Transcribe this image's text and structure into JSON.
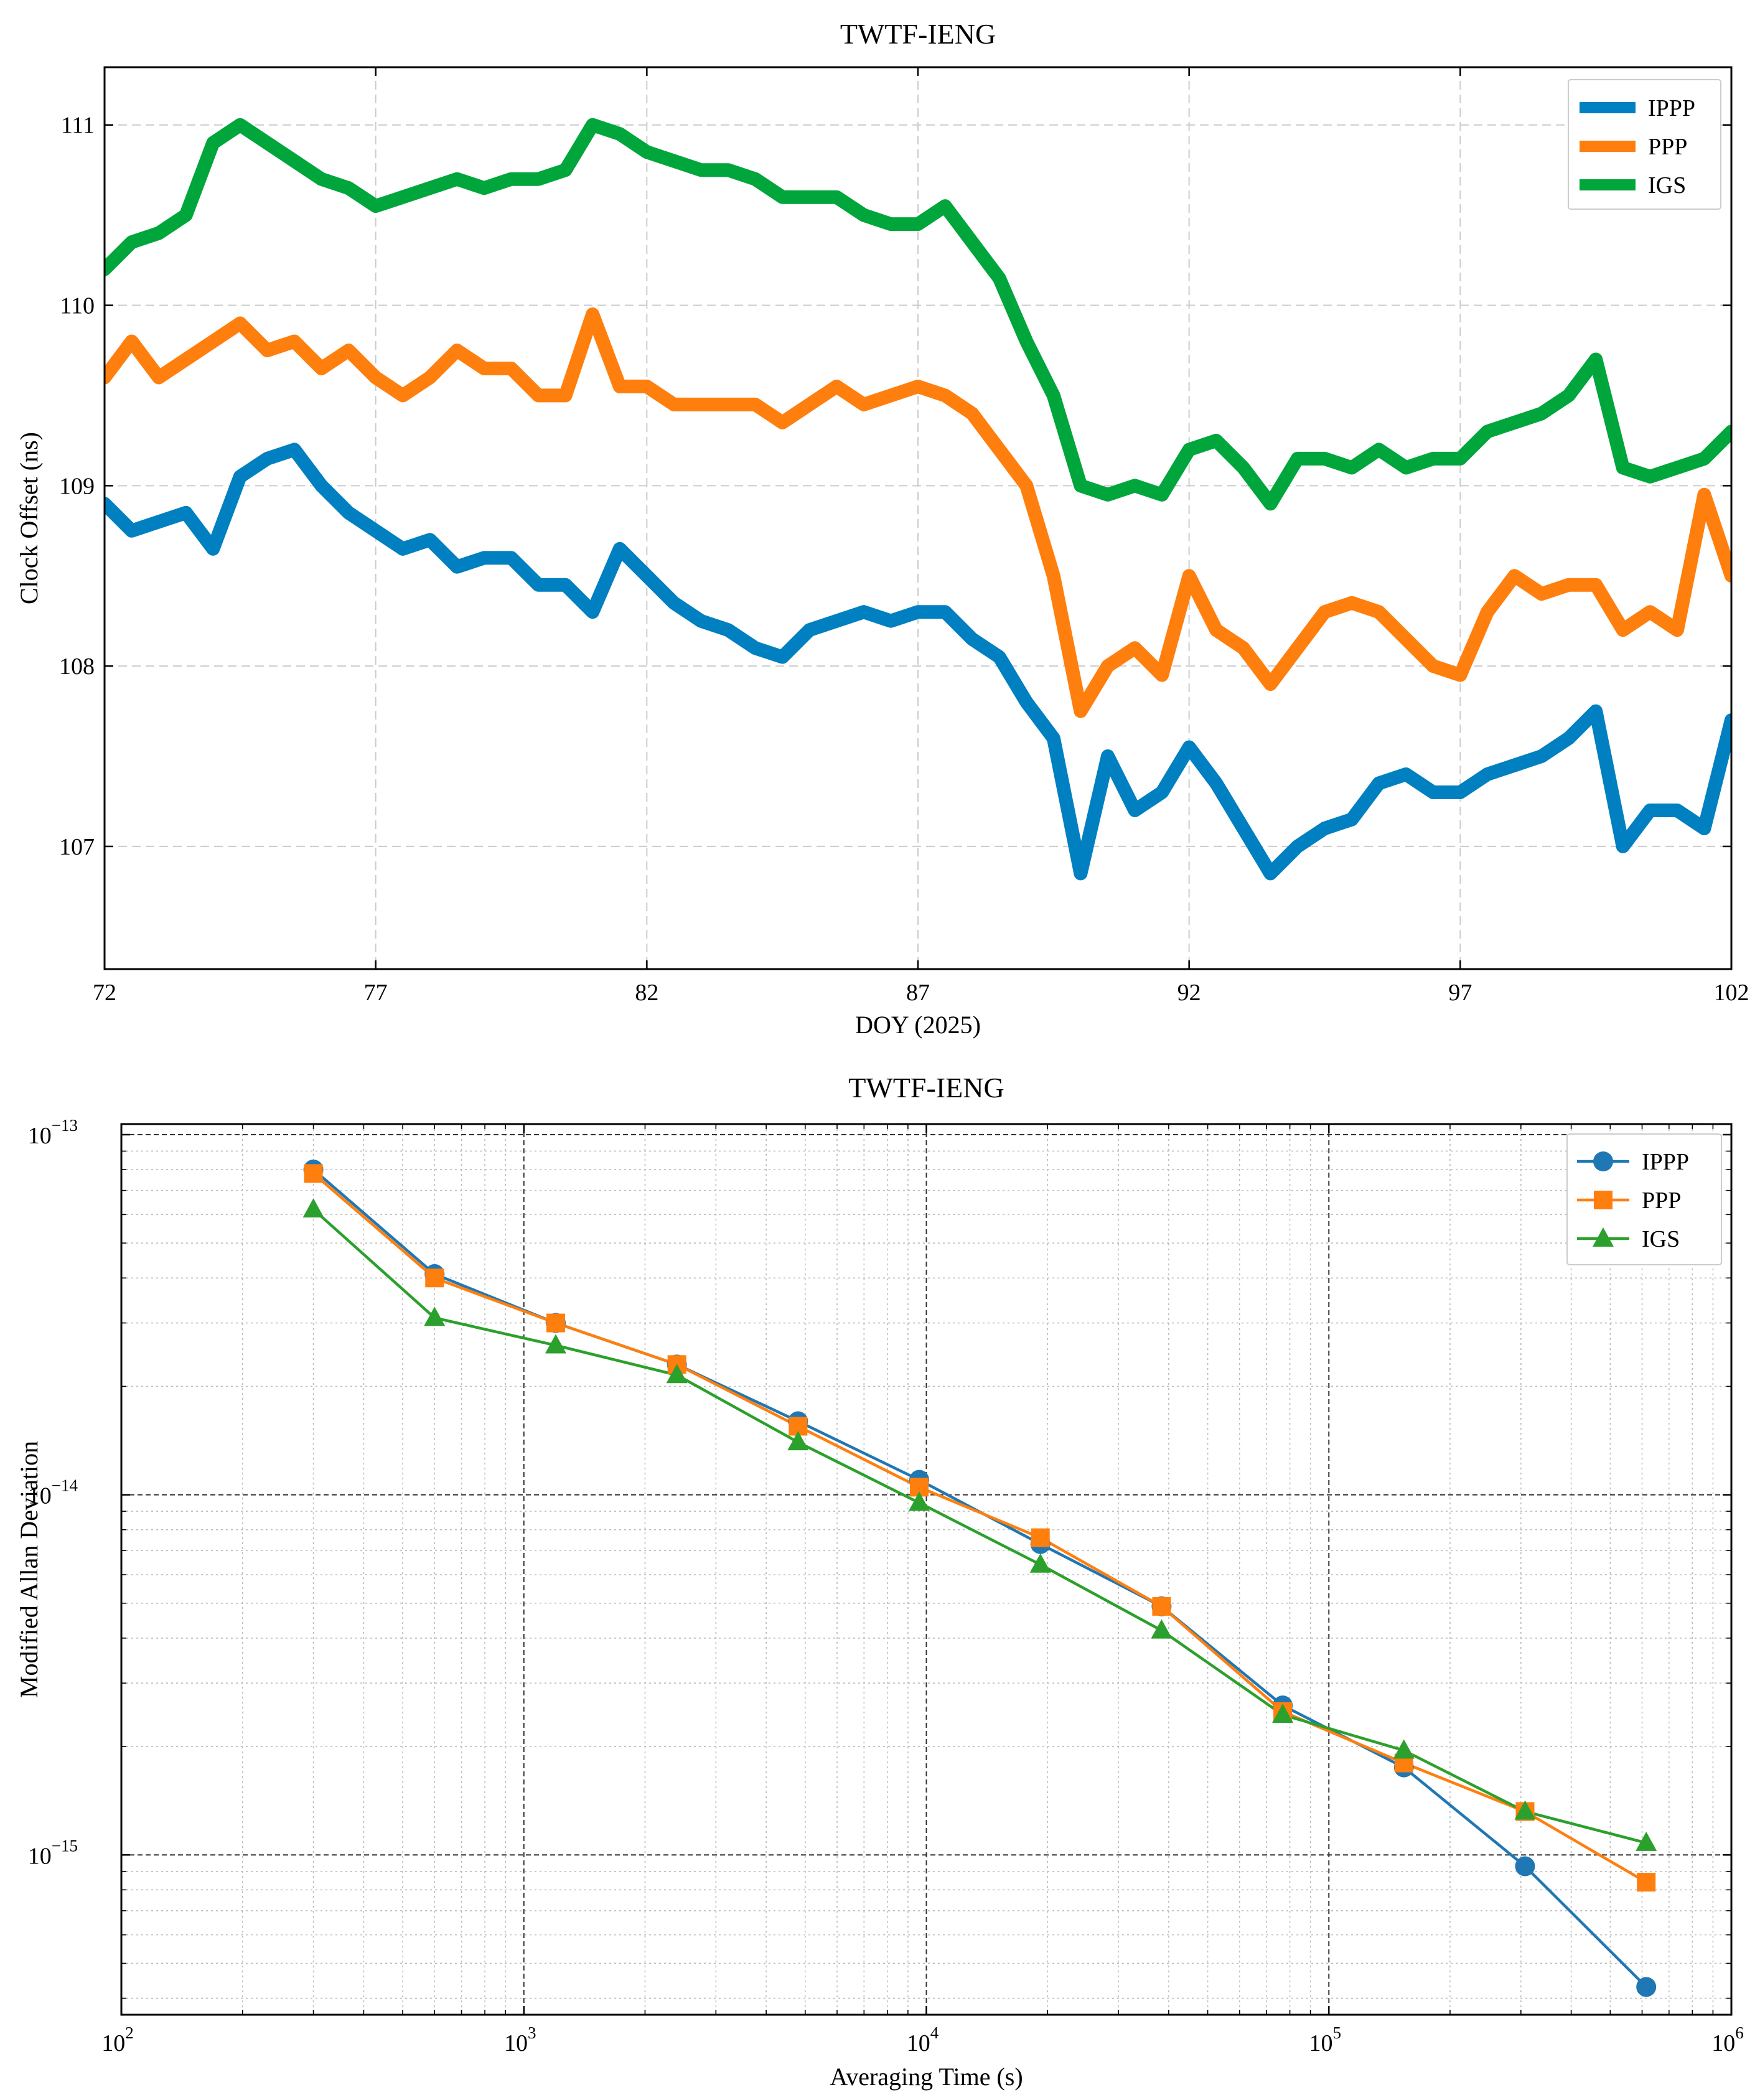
{
  "chart_data": [
    {
      "type": "line",
      "title": "TWTF-IENG",
      "xlabel": "DOY (2025)",
      "ylabel": "Clock Offset (ns)",
      "xlim": [
        72,
        102
      ],
      "ylim": [
        106.32,
        111.32
      ],
      "xticks": [
        72,
        77,
        82,
        87,
        92,
        97,
        102
      ],
      "xtick_labels": [
        "72",
        "77",
        "82",
        "87",
        "92",
        "97",
        "102"
      ],
      "yticks": [
        107,
        108,
        109,
        110,
        111
      ],
      "ytick_labels": [
        "107",
        "108",
        "109",
        "110",
        "111"
      ],
      "grid": true,
      "legend_position": "top-right",
      "series": [
        {
          "name": "IPPP",
          "color": "#0080c0",
          "x": [
            72,
            72.5,
            73,
            73.5,
            74,
            74.5,
            75,
            75.5,
            76,
            76.5,
            77,
            77.5,
            78,
            78.5,
            79,
            79.5,
            80,
            80.5,
            81,
            81.5,
            82,
            82.5,
            83,
            83.5,
            84,
            84.5,
            85,
            85.5,
            86,
            86.5,
            87,
            87.5,
            88,
            88.5,
            89,
            89.5,
            90,
            90.5,
            91,
            91.5,
            92,
            92.5,
            93,
            93.5,
            94,
            94.5,
            95,
            95.5,
            96,
            96.5,
            97,
            97.5,
            98,
            98.5,
            99,
            99.5,
            100,
            100.5,
            101,
            101.5,
            102
          ],
          "y": [
            108.9,
            108.75,
            108.8,
            108.85,
            108.65,
            109.05,
            109.15,
            109.2,
            109.0,
            108.85,
            108.75,
            108.65,
            108.7,
            108.55,
            108.6,
            108.6,
            108.45,
            108.45,
            108.3,
            108.65,
            108.5,
            108.35,
            108.25,
            108.2,
            108.1,
            108.05,
            108.2,
            108.25,
            108.3,
            108.25,
            108.3,
            108.3,
            108.15,
            108.05,
            107.8,
            107.6,
            106.85,
            107.5,
            107.2,
            107.3,
            107.55,
            107.35,
            107.1,
            106.85,
            107.0,
            107.1,
            107.15,
            107.35,
            107.4,
            107.3,
            107.3,
            107.4,
            107.45,
            107.5,
            107.6,
            107.75,
            107.0,
            107.2,
            107.2,
            107.1,
            107.7
          ]
        },
        {
          "name": "PPP",
          "color": "#ff7f0e",
          "x": [
            72,
            72.5,
            73,
            73.5,
            74,
            74.5,
            75,
            75.5,
            76,
            76.5,
            77,
            77.5,
            78,
            78.5,
            79,
            79.5,
            80,
            80.5,
            81,
            81.5,
            82,
            82.5,
            83,
            83.5,
            84,
            84.5,
            85,
            85.5,
            86,
            86.5,
            87,
            87.5,
            88,
            88.5,
            89,
            89.5,
            90,
            90.5,
            91,
            91.5,
            92,
            92.5,
            93,
            93.5,
            94,
            94.5,
            95,
            95.5,
            96,
            96.5,
            97,
            97.5,
            98,
            98.5,
            99,
            99.5,
            100,
            100.5,
            101,
            101.5,
            102
          ],
          "y": [
            109.6,
            109.8,
            109.6,
            109.7,
            109.8,
            109.9,
            109.75,
            109.8,
            109.65,
            109.75,
            109.6,
            109.5,
            109.6,
            109.75,
            109.65,
            109.65,
            109.5,
            109.5,
            109.95,
            109.55,
            109.55,
            109.45,
            109.45,
            109.45,
            109.45,
            109.35,
            109.45,
            109.55,
            109.45,
            109.5,
            109.55,
            109.5,
            109.4,
            109.2,
            109.0,
            108.5,
            107.75,
            108.0,
            108.1,
            107.95,
            108.5,
            108.2,
            108.1,
            107.9,
            108.1,
            108.3,
            108.35,
            108.3,
            108.15,
            108.0,
            107.95,
            108.3,
            108.5,
            108.4,
            108.45,
            108.45,
            108.2,
            108.3,
            108.2,
            108.95,
            108.5
          ]
        },
        {
          "name": "IGS",
          "color": "#00a63c",
          "x": [
            72,
            72.5,
            73,
            73.5,
            74,
            74.5,
            75,
            75.5,
            76,
            76.5,
            77,
            77.5,
            78,
            78.5,
            79,
            79.5,
            80,
            80.5,
            81,
            81.5,
            82,
            82.5,
            83,
            83.5,
            84,
            84.5,
            85,
            85.5,
            86,
            86.5,
            87,
            87.5,
            88,
            88.5,
            89,
            89.5,
            90,
            90.5,
            91,
            91.5,
            92,
            92.5,
            93,
            93.5,
            94,
            94.5,
            95,
            95.5,
            96,
            96.5,
            97,
            97.5,
            98,
            98.5,
            99,
            99.5,
            100,
            100.5,
            101,
            101.5,
            102
          ],
          "y": [
            110.2,
            110.35,
            110.4,
            110.5,
            110.9,
            111.0,
            110.9,
            110.8,
            110.7,
            110.65,
            110.55,
            110.6,
            110.65,
            110.7,
            110.65,
            110.7,
            110.7,
            110.75,
            111.0,
            110.95,
            110.85,
            110.8,
            110.75,
            110.75,
            110.7,
            110.6,
            110.6,
            110.6,
            110.5,
            110.45,
            110.45,
            110.55,
            110.35,
            110.15,
            109.8,
            109.5,
            109.0,
            108.95,
            109.0,
            108.95,
            109.2,
            109.25,
            109.1,
            108.9,
            109.15,
            109.15,
            109.1,
            109.2,
            109.1,
            109.15,
            109.15,
            109.3,
            109.35,
            109.4,
            109.5,
            109.7,
            109.1,
            109.05,
            109.1,
            109.15,
            109.3
          ]
        }
      ]
    },
    {
      "type": "line",
      "scale": "log-log",
      "title": "TWTF-IENG",
      "xlabel": "Averaging Time (s)",
      "ylabel": "Modified Allan Deviation",
      "xlim": [
        100,
        1000000
      ],
      "ylim": [
        3.6e-16,
        1.07e-13
      ],
      "xtick_labels": [
        {
          "base": "10",
          "exp": "2",
          "value": 100
        },
        {
          "base": "10",
          "exp": "3",
          "value": 1000
        },
        {
          "base": "10",
          "exp": "4",
          "value": 10000
        },
        {
          "base": "10",
          "exp": "5",
          "value": 100000
        },
        {
          "base": "10",
          "exp": "6",
          "value": 1000000
        }
      ],
      "ytick_labels": [
        {
          "base": "10",
          "exp": "−15",
          "value": 1e-15
        },
        {
          "base": "10",
          "exp": "−14",
          "value": 1e-14
        },
        {
          "base": "10",
          "exp": "−13",
          "value": 1e-13
        }
      ],
      "grid": true,
      "legend_position": "top-right",
      "x": [
        300,
        600,
        1200,
        2400,
        4800,
        9600,
        19200,
        38400,
        76800,
        153600,
        307200,
        614400
      ],
      "series": [
        {
          "name": "IPPP",
          "color": "#1f77b4",
          "marker": "circle",
          "values": [
            8e-14,
            4.1e-14,
            3e-14,
            2.3e-14,
            1.6e-14,
            1.1e-14,
            7.3e-15,
            4.9e-15,
            2.6e-15,
            1.75e-15,
            9.3e-16,
            4.3e-16
          ]
        },
        {
          "name": "PPP",
          "color": "#ff7f0e",
          "marker": "square",
          "values": [
            7.8e-14,
            4e-14,
            3e-14,
            2.3e-14,
            1.55e-14,
            1.05e-14,
            7.6e-15,
            4.9e-15,
            2.5e-15,
            1.8e-15,
            1.32e-15,
            8.4e-16
          ]
        },
        {
          "name": "IGS",
          "color": "#2ca02c",
          "marker": "triangle",
          "values": [
            6.2e-14,
            3.1e-14,
            2.6e-14,
            2.15e-14,
            1.4e-14,
            9.5e-15,
            6.4e-15,
            4.2e-15,
            2.45e-15,
            1.95e-15,
            1.32e-15,
            1.08e-15
          ]
        }
      ]
    }
  ]
}
